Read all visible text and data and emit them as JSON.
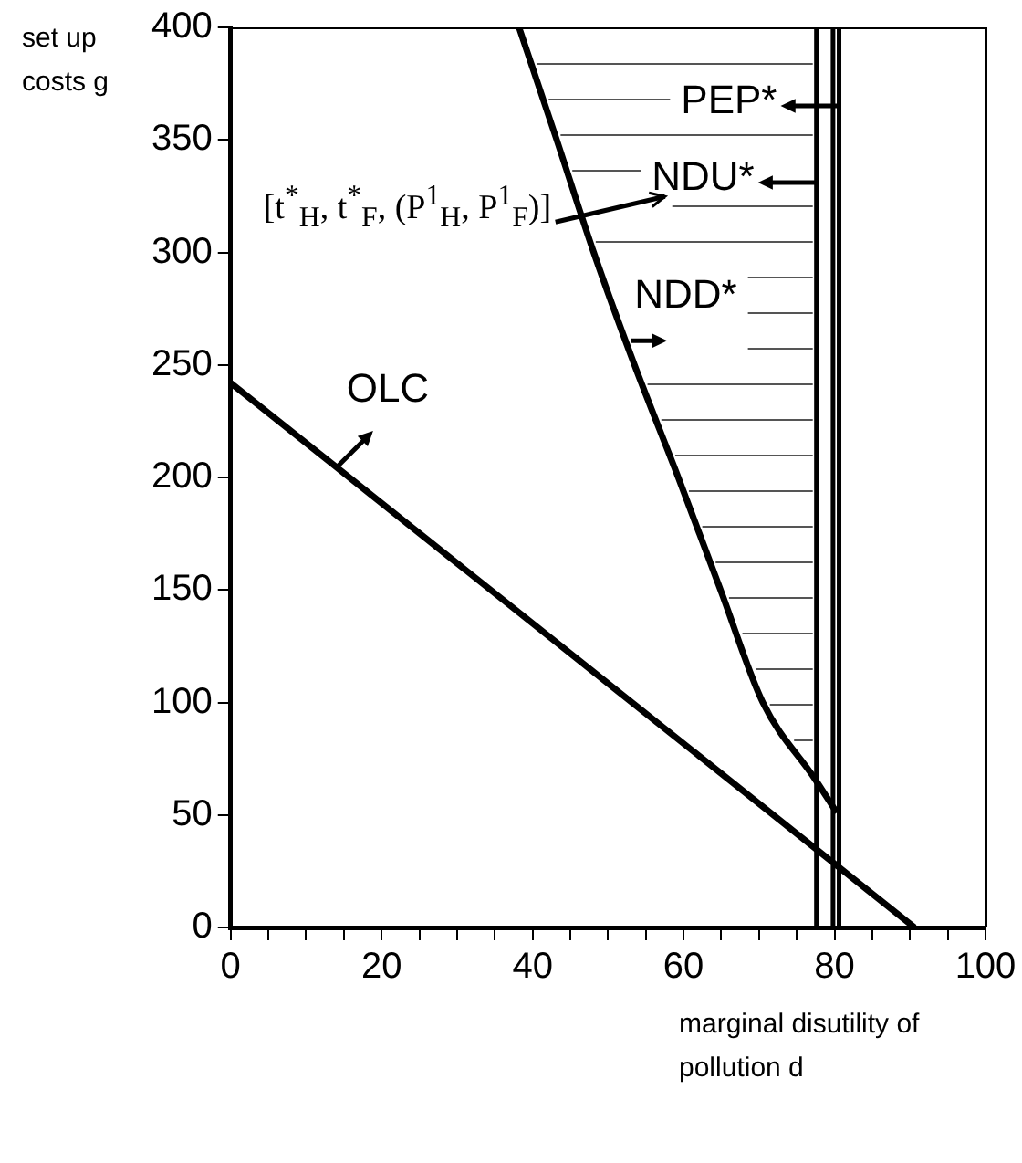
{
  "chart_data": {
    "type": "line",
    "xlabel": "marginal disutility of pollution d",
    "ylabel": "set up costs g",
    "xlim": [
      0,
      100
    ],
    "ylim": [
      0,
      400
    ],
    "xticks": [
      0,
      {
        "value": 5,
        "label": null
      },
      {
        "value": 10,
        "label": null
      },
      {
        "value": 15,
        "label": null
      },
      20,
      {
        "value": 25,
        "label": null
      },
      {
        "value": 30,
        "label": null
      },
      {
        "value": 35,
        "label": null
      },
      40,
      {
        "value": 45,
        "label": null
      },
      {
        "value": 50,
        "label": null
      },
      {
        "value": 55,
        "label": null
      },
      60,
      {
        "value": 65,
        "label": null
      },
      {
        "value": 70,
        "label": null
      },
      {
        "value": 75,
        "label": null
      },
      80,
      {
        "value": 85,
        "label": null
      },
      {
        "value": 90,
        "label": null
      },
      {
        "value": 95,
        "label": null
      },
      100
    ],
    "yticks": [
      0,
      50,
      100,
      150,
      200,
      250,
      300,
      350,
      400
    ],
    "grid": false,
    "legend": false,
    "marker": "none",
    "line_style": "solid",
    "series": [
      {
        "name": "OLC",
        "color": "#000000",
        "x": [
          0,
          90.6
        ],
        "values": [
          242,
          0
        ]
      },
      {
        "name": "NDD*",
        "color": "#000000",
        "x": [
          38.2,
          43.2,
          48.1,
          53.5,
          59.3,
          64.9,
          70.5,
          77.4,
          80.3
        ],
        "values": [
          400,
          350,
          300,
          250,
          200,
          150,
          100,
          66,
          51
        ]
      }
    ],
    "ref_lines": [
      {
        "axis": "x",
        "value": 77.6,
        "label": "NDU*",
        "color": "#000000"
      },
      {
        "axis": "x",
        "value": 79.8,
        "color": "#000000"
      },
      {
        "axis": "x",
        "value": 80.6,
        "label": "PEP*",
        "color": "#000000"
      }
    ],
    "annotations": [
      "[t$^{*}$$_{H}$, t$^{*}$$_{F}$, (P$^{1}$$_{H}$, P$^{1}$$_{F}$)]"
    ]
  }
}
